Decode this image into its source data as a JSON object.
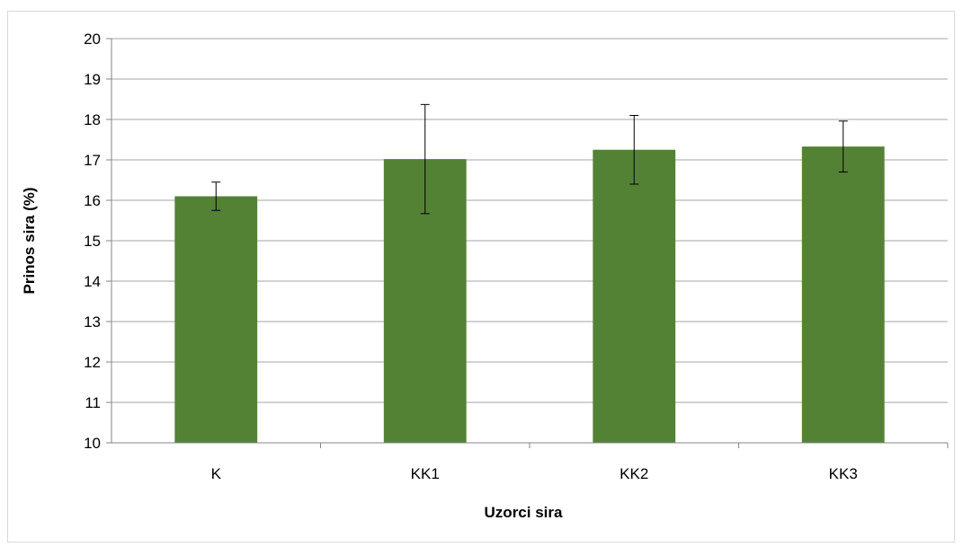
{
  "chart_data": {
    "type": "bar",
    "title": "",
    "xlabel": "Uzorci sira",
    "ylabel": "Prinos sira (%)",
    "ylim": [
      10,
      20
    ],
    "yticks": [
      10,
      11,
      12,
      13,
      14,
      15,
      16,
      17,
      18,
      19,
      20
    ],
    "categories": [
      "K",
      "KK1",
      "KK2",
      "KK3"
    ],
    "values": [
      16.1,
      17.02,
      17.25,
      17.33
    ],
    "error": [
      0.35,
      1.35,
      0.85,
      0.63
    ],
    "grid": true,
    "legend": "none",
    "bar_color": "#548235",
    "grid_color": "#a6a6a6"
  }
}
